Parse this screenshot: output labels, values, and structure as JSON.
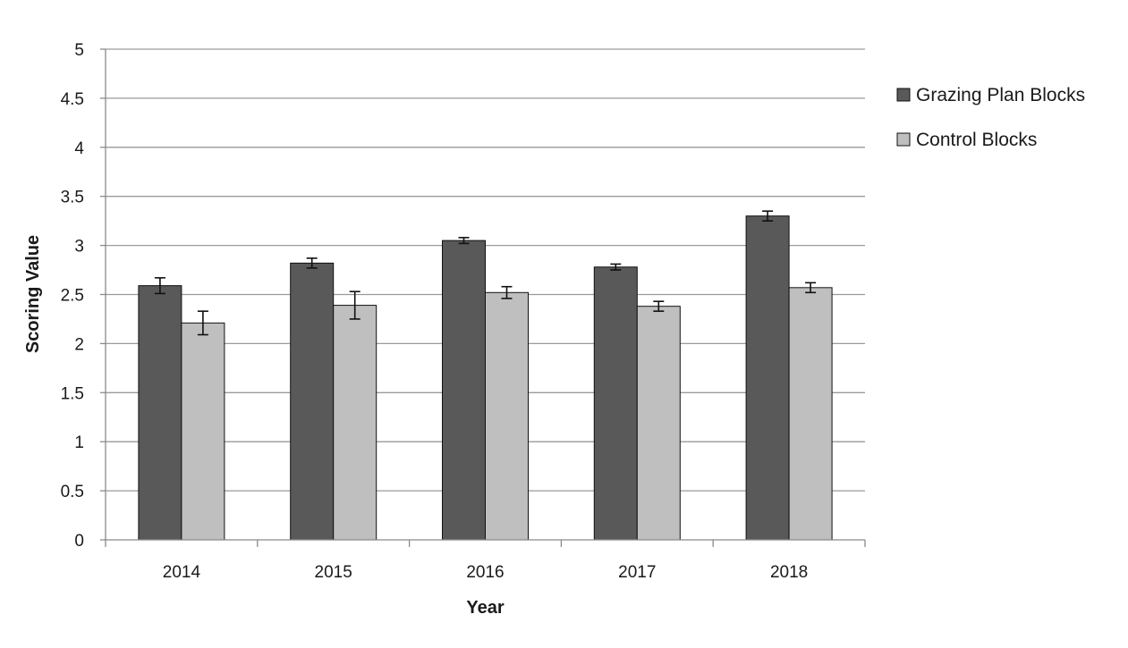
{
  "chart_data": {
    "type": "bar",
    "title": "",
    "xlabel": "Year",
    "ylabel": "Scoring Value",
    "ylim": [
      0,
      5
    ],
    "yticks": [
      "0",
      "0.5",
      "1",
      "1.5",
      "2",
      "2.5",
      "3",
      "3.5",
      "4",
      "4.5",
      "5"
    ],
    "categories": [
      "2014",
      "2015",
      "2016",
      "2017",
      "2018"
    ],
    "grid": true,
    "legend_position": "right",
    "series": [
      {
        "name": "Grazing Plan Blocks",
        "color": "#595959",
        "values": [
          2.59,
          2.82,
          3.05,
          2.78,
          3.3
        ],
        "errors": [
          0.08,
          0.05,
          0.03,
          0.03,
          0.05
        ]
      },
      {
        "name": "Control Blocks",
        "color": "#bfbfbf",
        "values": [
          2.21,
          2.39,
          2.52,
          2.38,
          2.57
        ],
        "errors": [
          0.12,
          0.14,
          0.06,
          0.05,
          0.05
        ]
      }
    ]
  }
}
